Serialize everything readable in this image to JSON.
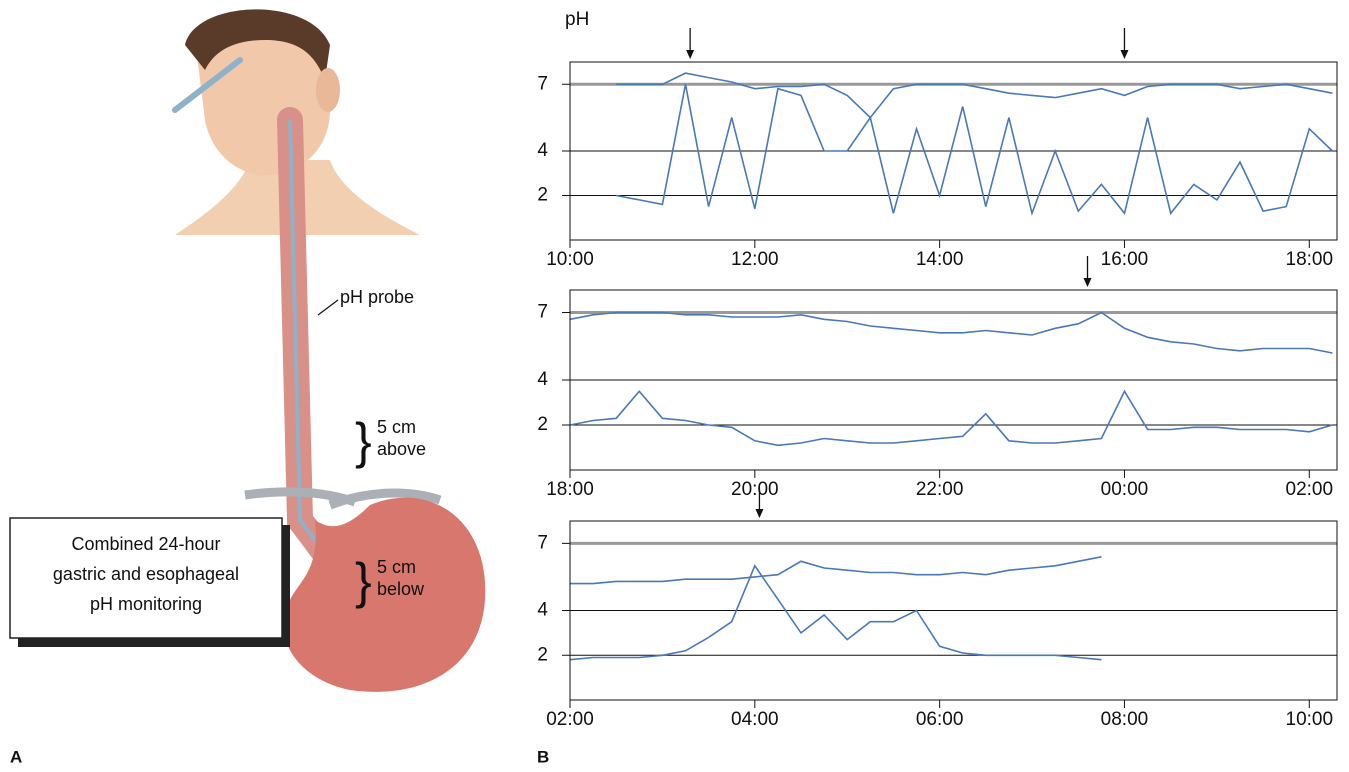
{
  "panel_labels": [
    "A",
    "B"
  ],
  "y_label": "pH",
  "illustration": {
    "probe_label": "pH probe",
    "above_label": [
      "5 cm",
      "above"
    ],
    "below_label": [
      "5 cm",
      "below"
    ],
    "box_text": [
      "Combined 24-hour",
      "gastric and esophageal",
      "pH monitoring"
    ]
  },
  "chart_data": [
    {
      "type": "line",
      "x": [
        10,
        10.25,
        10.5,
        10.75,
        11,
        11.25,
        11.5,
        11.75,
        12,
        12.25,
        12.5,
        12.75,
        13,
        13.25,
        13.5,
        13.75,
        14,
        14.25,
        14.5,
        14.75,
        15,
        15.25,
        15.5,
        15.75,
        16,
        16.25,
        16.5,
        16.75,
        17,
        17.25,
        17.5,
        17.75,
        18,
        18.25
      ],
      "series": [
        {
          "color": "#4a78b8",
          "values": [
            null,
            null,
            7,
            7,
            7,
            7.5,
            7.3,
            7.1,
            6.8,
            6.9,
            6.9,
            7,
            6.5,
            5.5,
            6.8,
            7,
            7,
            7,
            6.8,
            6.6,
            6.5,
            6.4,
            6.6,
            6.8,
            6.5,
            6.9,
            7,
            7,
            7,
            6.8,
            6.9,
            7,
            6.8,
            6.6
          ]
        },
        {
          "color": "#4a78b8",
          "values": [
            null,
            null,
            2,
            1.8,
            1.6,
            7,
            1.5,
            5.5,
            1.4,
            6.8,
            6.5,
            4,
            4,
            5.5,
            1.2,
            5,
            2,
            6,
            1.5,
            5.5,
            1.2,
            4,
            1.3,
            2.5,
            1.2,
            5.5,
            1.2,
            2.5,
            1.8,
            3.5,
            1.3,
            1.5,
            5,
            4
          ]
        }
      ],
      "xlim": [
        10,
        18.3
      ],
      "xticks": [
        {
          "value": 10,
          "label": "10:00"
        },
        {
          "value": 12,
          "label": "12:00"
        },
        {
          "value": 14,
          "label": "14:00"
        },
        {
          "value": 16,
          "label": "16:00"
        },
        {
          "value": 18,
          "label": "18:00"
        }
      ],
      "ylim": [
        0,
        8
      ],
      "yticks": [
        2,
        4,
        7
      ],
      "reference_line": 7,
      "arrows": [
        11.3,
        16.0
      ]
    },
    {
      "type": "line",
      "x": [
        18,
        18.25,
        18.5,
        18.75,
        19,
        19.25,
        19.5,
        19.75,
        20,
        20.25,
        20.5,
        20.75,
        21,
        21.25,
        21.5,
        21.75,
        22,
        22.25,
        22.5,
        22.75,
        23,
        23.25,
        23.5,
        23.75,
        24,
        24.25,
        24.5,
        24.75,
        25,
        25.25,
        25.5,
        25.75,
        26,
        26.25
      ],
      "series": [
        {
          "color": "#4a78b8",
          "values": [
            6.7,
            6.9,
            7,
            7,
            7,
            6.9,
            6.9,
            6.8,
            6.8,
            6.8,
            6.9,
            6.7,
            6.6,
            6.4,
            6.3,
            6.2,
            6.1,
            6.1,
            6.2,
            6.1,
            6.0,
            6.3,
            6.5,
            7.0,
            6.3,
            5.9,
            5.7,
            5.6,
            5.4,
            5.3,
            5.4,
            5.4,
            5.4,
            5.2
          ]
        },
        {
          "color": "#4a78b8",
          "values": [
            2,
            2.2,
            2.3,
            3.5,
            2.3,
            2.2,
            2.0,
            1.9,
            1.3,
            1.1,
            1.2,
            1.4,
            1.3,
            1.2,
            1.2,
            1.3,
            1.4,
            1.5,
            2.5,
            1.3,
            1.2,
            1.2,
            1.3,
            1.4,
            3.5,
            1.8,
            1.8,
            1.9,
            1.9,
            1.8,
            1.8,
            1.8,
            1.7,
            2.0
          ]
        }
      ],
      "xlim": [
        18,
        26.3
      ],
      "xticks": [
        {
          "value": 18,
          "label": "18:00"
        },
        {
          "value": 20,
          "label": "20:00"
        },
        {
          "value": 22,
          "label": "22:00"
        },
        {
          "value": 24,
          "label": "00:00"
        },
        {
          "value": 26,
          "label": "02:00"
        }
      ],
      "ylim": [
        0,
        8
      ],
      "yticks": [
        2,
        4,
        7
      ],
      "reference_line": 7,
      "arrows": [
        23.6
      ]
    },
    {
      "type": "line",
      "x": [
        2,
        2.25,
        2.5,
        2.75,
        3,
        3.25,
        3.5,
        3.75,
        4,
        4.25,
        4.5,
        4.75,
        5,
        5.25,
        5.5,
        5.75,
        6,
        6.25,
        6.5,
        6.75,
        7,
        7.25,
        7.5,
        7.75,
        8,
        8.25,
        8.5,
        8.75,
        9,
        9.25,
        9.5,
        9.75,
        10,
        10.25
      ],
      "series": [
        {
          "color": "#4a78b8",
          "values": [
            5.2,
            5.2,
            5.3,
            5.3,
            5.3,
            5.4,
            5.4,
            5.4,
            5.5,
            5.6,
            6.2,
            5.9,
            5.8,
            5.7,
            5.7,
            5.6,
            5.6,
            5.7,
            5.6,
            5.8,
            5.9,
            6.0,
            6.2,
            6.4,
            null,
            null,
            null,
            null,
            null,
            null,
            null,
            null,
            null,
            null
          ]
        },
        {
          "color": "#4a78b8",
          "values": [
            1.8,
            1.9,
            1.9,
            1.9,
            2.0,
            2.2,
            2.8,
            3.5,
            6.0,
            4.5,
            3.0,
            3.8,
            2.7,
            3.5,
            3.5,
            4.0,
            2.4,
            2.1,
            2.0,
            2.0,
            2.0,
            2.0,
            1.9,
            1.8,
            null,
            null,
            null,
            null,
            null,
            null,
            null,
            null,
            null,
            null
          ]
        }
      ],
      "xlim": [
        2,
        10.3
      ],
      "xticks": [
        {
          "value": 2,
          "label": "02:00"
        },
        {
          "value": 4,
          "label": "04:00"
        },
        {
          "value": 6,
          "label": "06:00"
        },
        {
          "value": 8,
          "label": "08:00"
        },
        {
          "value": 10,
          "label": "10:00"
        }
      ],
      "ylim": [
        0,
        8
      ],
      "yticks": [
        2,
        4,
        7
      ],
      "reference_line": 7,
      "arrows": [
        4.05
      ]
    }
  ]
}
